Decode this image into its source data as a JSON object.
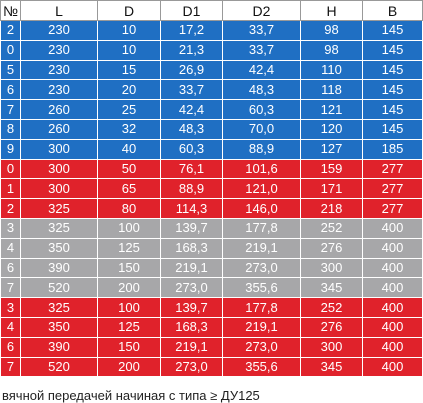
{
  "table": {
    "header": [
      "№",
      "L",
      "D",
      "D1",
      "D2",
      "H",
      "B"
    ],
    "rows": [
      [
        "2",
        "230",
        "10",
        "17,2",
        "33,7",
        "98",
        "145"
      ],
      [
        "0",
        "230",
        "10",
        "21,3",
        "33,7",
        "98",
        "145"
      ],
      [
        "5",
        "230",
        "15",
        "26,9",
        "42,4",
        "110",
        "145"
      ],
      [
        "6",
        "230",
        "20",
        "33,7",
        "48,3",
        "118",
        "145"
      ],
      [
        "7",
        "260",
        "25",
        "42,4",
        "60,3",
        "121",
        "145"
      ],
      [
        "8",
        "260",
        "32",
        "48,3",
        "70,0",
        "120",
        "145"
      ],
      [
        "9",
        "300",
        "40",
        "60,3",
        "88,9",
        "127",
        "185"
      ],
      [
        "0",
        "300",
        "50",
        "76,1",
        "101,6",
        "159",
        "277"
      ],
      [
        "1",
        "300",
        "65",
        "88,9",
        "121,0",
        "171",
        "277"
      ],
      [
        "2",
        "325",
        "80",
        "114,3",
        "146,0",
        "218",
        "277"
      ],
      [
        "3",
        "325",
        "100",
        "139,7",
        "177,8",
        "252",
        "400"
      ],
      [
        "4",
        "350",
        "125",
        "168,3",
        "219,1",
        "276",
        "400"
      ],
      [
        "6",
        "390",
        "150",
        "219,1",
        "273,0",
        "300",
        "400"
      ],
      [
        "7",
        "520",
        "200",
        "273,0",
        "355,6",
        "345",
        "400"
      ],
      [
        "3",
        "325",
        "100",
        "139,7",
        "177,8",
        "252",
        "400"
      ],
      [
        "4",
        "350",
        "125",
        "168,3",
        "219,1",
        "276",
        "400"
      ],
      [
        "6",
        "390",
        "150",
        "219,1",
        "273,0",
        "300",
        "400"
      ],
      [
        "7",
        "520",
        "200",
        "273,0",
        "355,6",
        "345",
        "400"
      ]
    ]
  },
  "footer": "вячной передачей начиная с типа ≥ ДУ125"
}
